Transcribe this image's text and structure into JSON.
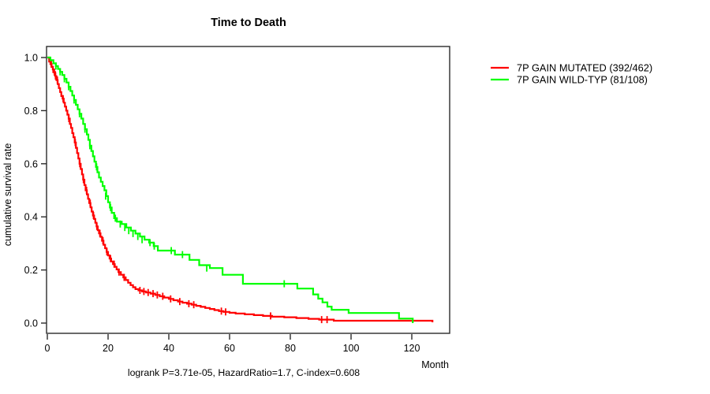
{
  "title": "Time to Death",
  "footer": "logrank P=3.71e-05, HazardRatio=1.7, C-index=0.608",
  "axes": {
    "x_label": "Month",
    "y_label": "cumulative survival rate",
    "x_ticks": [
      "0",
      "20",
      "40",
      "60",
      "80",
      "100",
      "120"
    ],
    "y_ticks": [
      "1.0",
      "0.8",
      "0.6",
      "0.4",
      "0.2",
      "0.0"
    ]
  },
  "legend": {
    "items": [
      {
        "label": "7P GAIN MUTATED (392/462)",
        "color": "#FF0000"
      },
      {
        "label": "7P GAIN WILD-TYP (81/108)",
        "color": "#00FF00"
      }
    ]
  },
  "chart_data": {
    "type": "line",
    "subtype": "kaplan-meier-step",
    "title": "Time to Death",
    "xlabel": "Month",
    "ylabel": "cumulative survival rate",
    "xlim": [
      0,
      132
    ],
    "ylim": [
      0,
      1.0
    ],
    "x_ticks": [
      0,
      20,
      40,
      60,
      80,
      100,
      120
    ],
    "y_ticks": [
      0.0,
      0.2,
      0.4,
      0.6,
      0.8,
      1.0
    ],
    "grid": false,
    "legend_position": "right-outside",
    "annotation": "logrank P=3.71e-05, HazardRatio=1.7, C-index=0.608",
    "series": [
      {
        "id": "mutated",
        "name": "7P GAIN MUTATED (392/462)",
        "color": "#FF0000",
        "events": 392,
        "n": 462,
        "points": [
          [
            0,
            1.0
          ],
          [
            0.6,
            0.985
          ],
          [
            1,
            0.975
          ],
          [
            1.4,
            0.965
          ],
          [
            1.8,
            0.955
          ],
          [
            2.2,
            0.945
          ],
          [
            2.6,
            0.93
          ],
          [
            3,
            0.915
          ],
          [
            3.4,
            0.9
          ],
          [
            3.8,
            0.885
          ],
          [
            4.2,
            0.87
          ],
          [
            4.6,
            0.855
          ],
          [
            5,
            0.845
          ],
          [
            5.4,
            0.83
          ],
          [
            5.8,
            0.815
          ],
          [
            6.2,
            0.8
          ],
          [
            6.6,
            0.785
          ],
          [
            7,
            0.77
          ],
          [
            7.4,
            0.75
          ],
          [
            7.8,
            0.735
          ],
          [
            8.2,
            0.715
          ],
          [
            8.6,
            0.7
          ],
          [
            9,
            0.68
          ],
          [
            9.4,
            0.66
          ],
          [
            9.8,
            0.64
          ],
          [
            10.2,
            0.62
          ],
          [
            10.6,
            0.6
          ],
          [
            11,
            0.58
          ],
          [
            11.4,
            0.56
          ],
          [
            11.8,
            0.54
          ],
          [
            12.2,
            0.52
          ],
          [
            12.6,
            0.5
          ],
          [
            13,
            0.485
          ],
          [
            13.4,
            0.468
          ],
          [
            13.8,
            0.452
          ],
          [
            14.2,
            0.436
          ],
          [
            14.6,
            0.42
          ],
          [
            15,
            0.405
          ],
          [
            15.4,
            0.392
          ],
          [
            15.8,
            0.378
          ],
          [
            16.2,
            0.364
          ],
          [
            16.6,
            0.35
          ],
          [
            17,
            0.338
          ],
          [
            17.5,
            0.325
          ],
          [
            18,
            0.31
          ],
          [
            18.5,
            0.295
          ],
          [
            19,
            0.282
          ],
          [
            19.5,
            0.268
          ],
          [
            20,
            0.255
          ],
          [
            20.5,
            0.243
          ],
          [
            21,
            0.232
          ],
          [
            21.6,
            0.222
          ],
          [
            22.2,
            0.212
          ],
          [
            22.8,
            0.202
          ],
          [
            23.4,
            0.192
          ],
          [
            24.2,
            0.182
          ],
          [
            25,
            0.172
          ],
          [
            25.8,
            0.162
          ],
          [
            26.6,
            0.152
          ],
          [
            27.4,
            0.143
          ],
          [
            28.2,
            0.135
          ],
          [
            29,
            0.128
          ],
          [
            30,
            0.123
          ],
          [
            31.2,
            0.119
          ],
          [
            32.5,
            0.115
          ],
          [
            34,
            0.111
          ],
          [
            35.5,
            0.106
          ],
          [
            37,
            0.101
          ],
          [
            38.5,
            0.096
          ],
          [
            40,
            0.091
          ],
          [
            41.5,
            0.086
          ],
          [
            43,
            0.081
          ],
          [
            44.5,
            0.077
          ],
          [
            46,
            0.073
          ],
          [
            47.5,
            0.069
          ],
          [
            49,
            0.065
          ],
          [
            50.5,
            0.061
          ],
          [
            52,
            0.057
          ],
          [
            53.5,
            0.053
          ],
          [
            55,
            0.049
          ],
          [
            56.5,
            0.045
          ],
          [
            58,
            0.042
          ],
          [
            60,
            0.039
          ],
          [
            62,
            0.036
          ],
          [
            65,
            0.033
          ],
          [
            68,
            0.03
          ],
          [
            71,
            0.027
          ],
          [
            74,
            0.024
          ],
          [
            78,
            0.022
          ],
          [
            82,
            0.019
          ],
          [
            86,
            0.016
          ],
          [
            89.5,
            0.013
          ],
          [
            94.3,
            0.009
          ],
          [
            126.8,
            0.003
          ]
        ],
        "censor_marks": [
          [
            1.3,
            0.975
          ],
          [
            1.9,
            0.955
          ],
          [
            2.3,
            0.945
          ],
          [
            2.7,
            0.93
          ],
          [
            3.3,
            0.915
          ],
          [
            5.2,
            0.845
          ],
          [
            7.1,
            0.77
          ],
          [
            9.2,
            0.68
          ],
          [
            10.7,
            0.6
          ],
          [
            11.9,
            0.54
          ],
          [
            12.9,
            0.5
          ],
          [
            14.1,
            0.452
          ],
          [
            15.2,
            0.405
          ],
          [
            16.3,
            0.364
          ],
          [
            17.3,
            0.338
          ],
          [
            18.3,
            0.31
          ],
          [
            19.6,
            0.268
          ],
          [
            20.8,
            0.243
          ],
          [
            22,
            0.222
          ],
          [
            23.6,
            0.192
          ],
          [
            25.3,
            0.172
          ],
          [
            30.5,
            0.123
          ],
          [
            31.8,
            0.119
          ],
          [
            33.2,
            0.115
          ],
          [
            34.8,
            0.111
          ],
          [
            36.2,
            0.106
          ],
          [
            38,
            0.101
          ],
          [
            40.6,
            0.091
          ],
          [
            43.6,
            0.081
          ],
          [
            46.6,
            0.073
          ],
          [
            48.2,
            0.069
          ],
          [
            57.3,
            0.045
          ],
          [
            58.7,
            0.042
          ],
          [
            73.5,
            0.027
          ],
          [
            90.3,
            0.013
          ],
          [
            92.1,
            0.013
          ]
        ]
      },
      {
        "id": "wildtype",
        "name": "7P GAIN WILD-TYP (81/108)",
        "color": "#00FF00",
        "events": 81,
        "n": 108,
        "points": [
          [
            0,
            1.0
          ],
          [
            1,
            0.99
          ],
          [
            2,
            0.978
          ],
          [
            2.8,
            0.968
          ],
          [
            3.5,
            0.957
          ],
          [
            4.2,
            0.946
          ],
          [
            4.9,
            0.934
          ],
          [
            5.6,
            0.92
          ],
          [
            6.3,
            0.906
          ],
          [
            7,
            0.89
          ],
          [
            7.6,
            0.874
          ],
          [
            8.2,
            0.857
          ],
          [
            8.8,
            0.84
          ],
          [
            9.4,
            0.822
          ],
          [
            10,
            0.805
          ],
          [
            10.6,
            0.788
          ],
          [
            11.2,
            0.77
          ],
          [
            11.8,
            0.75
          ],
          [
            12.4,
            0.73
          ],
          [
            13,
            0.71
          ],
          [
            13.5,
            0.69
          ],
          [
            14,
            0.668
          ],
          [
            14.5,
            0.648
          ],
          [
            15,
            0.628
          ],
          [
            15.5,
            0.608
          ],
          [
            16,
            0.588
          ],
          [
            16.5,
            0.568
          ],
          [
            17,
            0.548
          ],
          [
            17.6,
            0.532
          ],
          [
            18.2,
            0.516
          ],
          [
            18.8,
            0.5
          ],
          [
            19.4,
            0.478
          ],
          [
            20,
            0.455
          ],
          [
            20.6,
            0.435
          ],
          [
            21.2,
            0.415
          ],
          [
            22,
            0.395
          ],
          [
            22.9,
            0.382
          ],
          [
            24.5,
            0.373
          ],
          [
            26,
            0.36
          ],
          [
            27.5,
            0.348
          ],
          [
            29,
            0.337
          ],
          [
            30.5,
            0.326
          ],
          [
            32,
            0.314
          ],
          [
            33.5,
            0.303
          ],
          [
            35,
            0.29
          ],
          [
            36.4,
            0.273
          ],
          [
            42,
            0.258
          ],
          [
            46.8,
            0.238
          ],
          [
            50,
            0.218
          ],
          [
            53.5,
            0.207
          ],
          [
            57.7,
            0.182
          ],
          [
            64.4,
            0.148
          ],
          [
            82.3,
            0.13
          ],
          [
            87.5,
            0.108
          ],
          [
            89.2,
            0.092
          ],
          [
            90.6,
            0.078
          ],
          [
            92.2,
            0.062
          ],
          [
            93.6,
            0.05
          ],
          [
            99.2,
            0.038
          ],
          [
            115.8,
            0.017
          ],
          [
            120.3,
            0.0
          ]
        ],
        "censor_marks": [
          [
            2.8,
            0.968
          ],
          [
            4.2,
            0.946
          ],
          [
            5.6,
            0.92
          ],
          [
            7,
            0.89
          ],
          [
            8.8,
            0.84
          ],
          [
            10.6,
            0.788
          ],
          [
            12.4,
            0.73
          ],
          [
            14,
            0.668
          ],
          [
            16.2,
            0.588
          ],
          [
            19.2,
            0.478
          ],
          [
            20.8,
            0.435
          ],
          [
            22.4,
            0.395
          ],
          [
            24,
            0.373
          ],
          [
            25.5,
            0.36
          ],
          [
            26.8,
            0.348
          ],
          [
            28.2,
            0.337
          ],
          [
            29.8,
            0.326
          ],
          [
            31.2,
            0.314
          ],
          [
            33.8,
            0.303
          ],
          [
            35.2,
            0.29
          ],
          [
            40.8,
            0.273
          ],
          [
            44.5,
            0.258
          ],
          [
            52.5,
            0.207
          ],
          [
            78,
            0.148
          ]
        ]
      }
    ]
  }
}
